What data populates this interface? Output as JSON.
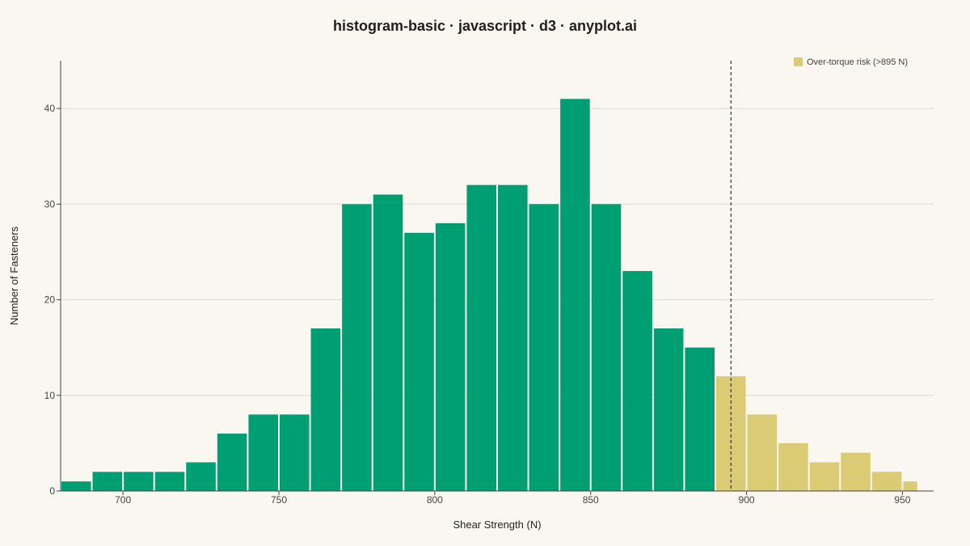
{
  "chart_data": {
    "type": "bar",
    "title": "histogram-basic · javascript · d3 · anyplot.ai",
    "xlabel": "Shear Strength (N)",
    "ylabel": "Number of Fasteners",
    "xlim": [
      680,
      960
    ],
    "ylim": [
      0,
      45
    ],
    "x_ticks": [
      700,
      750,
      800,
      850,
      900,
      950
    ],
    "y_ticks": [
      0,
      10,
      20,
      30,
      40
    ],
    "grid": "y",
    "bins": [
      {
        "x0": 680,
        "x1": 690,
        "count": 1
      },
      {
        "x0": 690,
        "x1": 700,
        "count": 2
      },
      {
        "x0": 700,
        "x1": 710,
        "count": 2
      },
      {
        "x0": 710,
        "x1": 720,
        "count": 2
      },
      {
        "x0": 720,
        "x1": 730,
        "count": 3
      },
      {
        "x0": 730,
        "x1": 740,
        "count": 6
      },
      {
        "x0": 740,
        "x1": 750,
        "count": 8
      },
      {
        "x0": 750,
        "x1": 760,
        "count": 8
      },
      {
        "x0": 760,
        "x1": 770,
        "count": 17
      },
      {
        "x0": 770,
        "x1": 780,
        "count": 30
      },
      {
        "x0": 780,
        "x1": 790,
        "count": 31
      },
      {
        "x0": 790,
        "x1": 800,
        "count": 27
      },
      {
        "x0": 800,
        "x1": 810,
        "count": 28
      },
      {
        "x0": 810,
        "x1": 820,
        "count": 32
      },
      {
        "x0": 820,
        "x1": 830,
        "count": 32
      },
      {
        "x0": 830,
        "x1": 840,
        "count": 30
      },
      {
        "x0": 840,
        "x1": 850,
        "count": 41
      },
      {
        "x0": 850,
        "x1": 860,
        "count": 30
      },
      {
        "x0": 860,
        "x1": 870,
        "count": 23
      },
      {
        "x0": 870,
        "x1": 880,
        "count": 17
      },
      {
        "x0": 880,
        "x1": 890,
        "count": 15
      },
      {
        "x0": 890,
        "x1": 900,
        "count": 12
      },
      {
        "x0": 900,
        "x1": 910,
        "count": 8
      },
      {
        "x0": 910,
        "x1": 920,
        "count": 5
      },
      {
        "x0": 920,
        "x1": 930,
        "count": 3
      },
      {
        "x0": 930,
        "x1": 940,
        "count": 4
      },
      {
        "x0": 940,
        "x1": 950,
        "count": 2
      },
      {
        "x0": 950,
        "x1": 955,
        "count": 1
      }
    ],
    "threshold": 895,
    "highlight_from": 890,
    "legend": {
      "label": "Over-torque risk (>895 N)",
      "position": "top-right"
    },
    "colors": {
      "normal": "#009e73",
      "highlight": "#dccb75",
      "threshold_line": "#333333",
      "grid": "#dcd9d2",
      "axis": "#444444"
    }
  }
}
